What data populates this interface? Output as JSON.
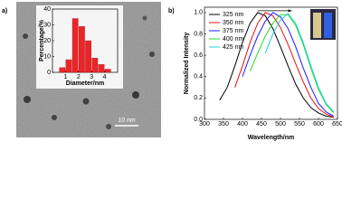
{
  "chart_data": [
    {
      "type": "histogram",
      "panel_label": "a)",
      "xlabel": "Diameter/nm",
      "ylabel": "Percentage/%",
      "bins": [
        0.5,
        1,
        1.5,
        2,
        2.5,
        3,
        3.5,
        4,
        4.5
      ],
      "counts": [
        3,
        8,
        34,
        29,
        20,
        9,
        5,
        2
      ],
      "color": "#e8262a",
      "xlim": [
        0,
        5
      ],
      "xticks": [
        1,
        2,
        3,
        4
      ],
      "ylim": [
        0,
        40
      ],
      "yticks": [
        0,
        10,
        20,
        30,
        40
      ],
      "scale_bar_label": "10 nm"
    },
    {
      "type": "line",
      "panel_label": "b)",
      "xlabel": "Wavelength/nm",
      "ylabel": "Normalized Intensity",
      "x": [
        320,
        340,
        360,
        380,
        400,
        420,
        440,
        460,
        480,
        500,
        520,
        540,
        560,
        580,
        600,
        620,
        640
      ],
      "series": [
        {
          "name": "325 nm",
          "color": "#000000",
          "values": [
            null,
            0.18,
            0.3,
            0.5,
            0.72,
            0.9,
            1.0,
            0.97,
            0.85,
            0.68,
            0.5,
            0.33,
            0.2,
            0.11,
            0.06,
            0.03,
            0.02
          ]
        },
        {
          "name": "350 nm",
          "color": "#e01010",
          "values": [
            null,
            null,
            null,
            0.3,
            0.5,
            0.72,
            0.9,
            1.0,
            0.97,
            0.86,
            0.7,
            0.52,
            0.35,
            0.2,
            0.1,
            0.05,
            0.02
          ]
        },
        {
          "name": "375 nm",
          "color": "#1a1aff",
          "values": [
            null,
            null,
            null,
            null,
            0.4,
            0.6,
            0.78,
            0.92,
            1.0,
            0.96,
            0.85,
            0.68,
            0.48,
            0.3,
            0.15,
            0.07,
            0.03
          ]
        },
        {
          "name": "400 nm",
          "color": "#22dd22",
          "values": [
            null,
            null,
            null,
            null,
            null,
            0.45,
            0.62,
            0.78,
            0.9,
            0.98,
            0.98,
            0.88,
            0.7,
            0.48,
            0.28,
            0.14,
            0.06
          ]
        },
        {
          "name": "425 nm",
          "color": "#20d0e0",
          "values": [
            null,
            null,
            null,
            null,
            null,
            null,
            null,
            0.62,
            0.8,
            0.93,
            0.99,
            0.9,
            0.72,
            0.5,
            0.3,
            0.15,
            0.07
          ]
        }
      ],
      "xlim": [
        300,
        650
      ],
      "xticks": [
        300,
        350,
        400,
        450,
        500,
        550,
        600,
        650
      ],
      "ylim": [
        0,
        1.05
      ],
      "yticks": [
        {
          "value": 0,
          "label": "0.0"
        },
        0.2,
        0.4,
        0.6,
        0.8,
        {
          "value": 1,
          "label": "1.0"
        }
      ],
      "legend": "upper left"
    }
  ]
}
